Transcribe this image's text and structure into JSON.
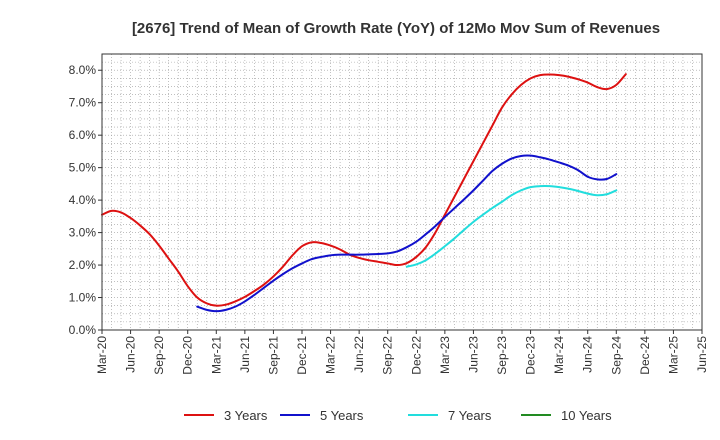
{
  "chart_data": {
    "type": "line",
    "title": "[2676]  Trend of Mean of Growth Rate (YoY) of 12Mo Mov Sum of Revenues",
    "xlabel": "",
    "ylabel": "",
    "ylim": [
      0,
      8.5
    ],
    "yticks": [
      0,
      1,
      2,
      3,
      4,
      5,
      6,
      7,
      8
    ],
    "ytick_labels": [
      "0.0%",
      "1.0%",
      "2.0%",
      "3.0%",
      "4.0%",
      "5.0%",
      "6.0%",
      "7.0%",
      "8.0%"
    ],
    "xlim": [
      0,
      63
    ],
    "xticks": [
      0,
      3,
      6,
      9,
      12,
      15,
      18,
      21,
      24,
      27,
      30,
      33,
      36,
      39,
      42,
      45,
      48,
      51,
      54,
      57,
      60,
      63
    ],
    "xtick_labels": [
      "Mar-20",
      "Jun-20",
      "Sep-20",
      "Dec-20",
      "Mar-21",
      "Jun-21",
      "Sep-21",
      "Dec-21",
      "Mar-22",
      "Jun-22",
      "Sep-22",
      "Dec-22",
      "Mar-23",
      "Jun-23",
      "Sep-23",
      "Dec-23",
      "Mar-24",
      "Jun-24",
      "Sep-24",
      "Dec-24",
      "Mar-25",
      "Jun-25"
    ],
    "grid": true,
    "legend_position": "bottom",
    "series": [
      {
        "name": "3 Years",
        "color": "#dd1111",
        "start_index": 0,
        "values": [
          3.55,
          3.67,
          3.62,
          3.45,
          3.22,
          2.95,
          2.6,
          2.2,
          1.8,
          1.35,
          1.0,
          0.82,
          0.75,
          0.78,
          0.88,
          1.02,
          1.2,
          1.4,
          1.65,
          1.95,
          2.3,
          2.58,
          2.7,
          2.68,
          2.6,
          2.48,
          2.32,
          2.22,
          2.15,
          2.1,
          2.05,
          2.0,
          2.06,
          2.25,
          2.55,
          3.0,
          3.55,
          4.1,
          4.65,
          5.2,
          5.75,
          6.3,
          6.85,
          7.25,
          7.55,
          7.75,
          7.85,
          7.87,
          7.85,
          7.8,
          7.72,
          7.62,
          7.48,
          7.42,
          7.55,
          7.88
        ]
      },
      {
        "name": "5 Years",
        "color": "#1111cc",
        "start_index": 10,
        "values": [
          0.72,
          0.62,
          0.58,
          0.62,
          0.72,
          0.88,
          1.08,
          1.3,
          1.52,
          1.72,
          1.9,
          2.05,
          2.18,
          2.25,
          2.3,
          2.32,
          2.32,
          2.32,
          2.33,
          2.34,
          2.36,
          2.42,
          2.55,
          2.72,
          2.95,
          3.2,
          3.48,
          3.75,
          4.02,
          4.3,
          4.6,
          4.9,
          5.12,
          5.28,
          5.36,
          5.37,
          5.32,
          5.25,
          5.16,
          5.06,
          4.92,
          4.72,
          4.64,
          4.65,
          4.8
        ]
      },
      {
        "name": "7 Years",
        "color": "#22dddd",
        "start_index": 32,
        "values": [
          1.95,
          2.02,
          2.15,
          2.35,
          2.58,
          2.82,
          3.08,
          3.33,
          3.55,
          3.76,
          3.95,
          4.15,
          4.3,
          4.4,
          4.43,
          4.43,
          4.4,
          4.35,
          4.28,
          4.2,
          4.15,
          4.18,
          4.3
        ]
      },
      {
        "name": "10 Years",
        "color": "#228b22",
        "start_index": 0,
        "values": []
      }
    ]
  }
}
